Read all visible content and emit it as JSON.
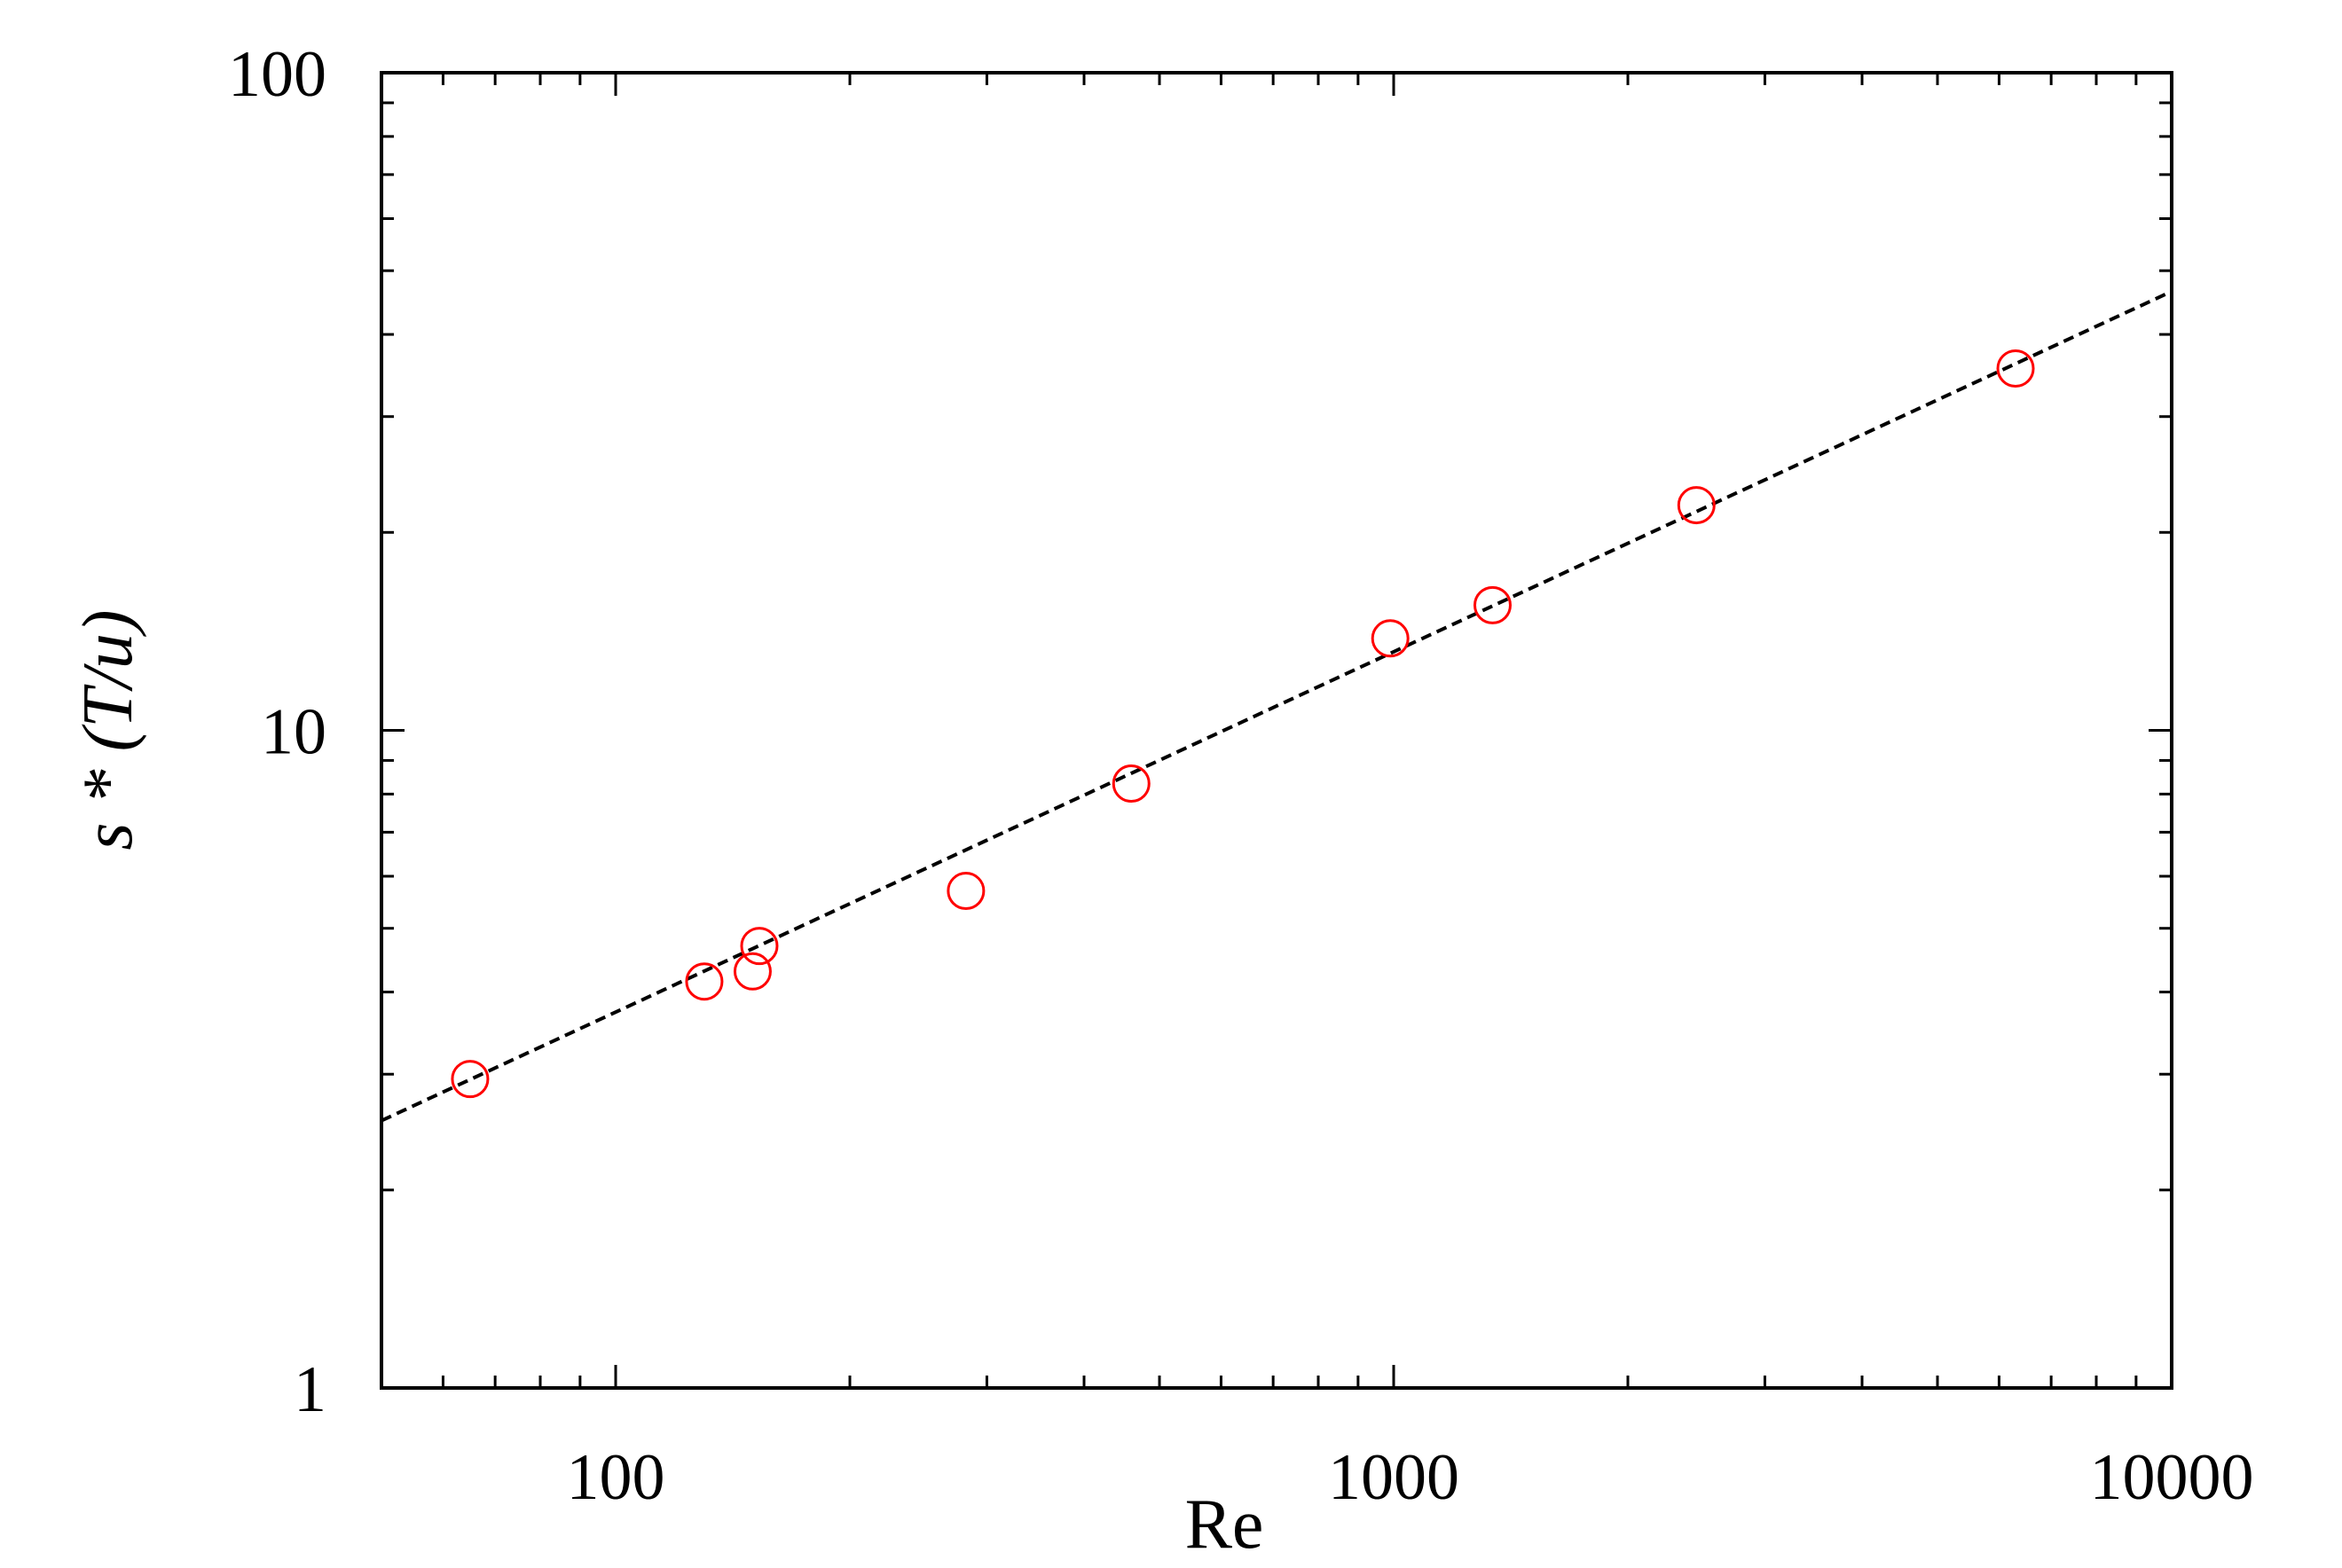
{
  "chart_data": {
    "type": "scatter",
    "xlabel": "Re",
    "ylabel": "s * (T/u)",
    "xscale": "log",
    "yscale": "log",
    "xlim": [
      50,
      10000
    ],
    "ylim": [
      1,
      100
    ],
    "xticks": [
      100,
      1000,
      10000
    ],
    "yticks": [
      1,
      10,
      100
    ],
    "grid": false,
    "series": [
      {
        "kind": "points",
        "marker": "open-circle",
        "color": "#ff0000",
        "x": [
          65,
          130,
          150,
          153,
          282,
          460,
          990,
          1340,
          2450,
          6300
        ],
        "y": [
          2.95,
          4.15,
          4.3,
          4.7,
          5.7,
          8.3,
          13.8,
          15.5,
          22.0,
          35.5
        ]
      },
      {
        "kind": "fit-line",
        "style": "dashed",
        "color": "#000000",
        "x": [
          50,
          10000
        ],
        "y": [
          2.55,
          46.5
        ]
      }
    ]
  }
}
